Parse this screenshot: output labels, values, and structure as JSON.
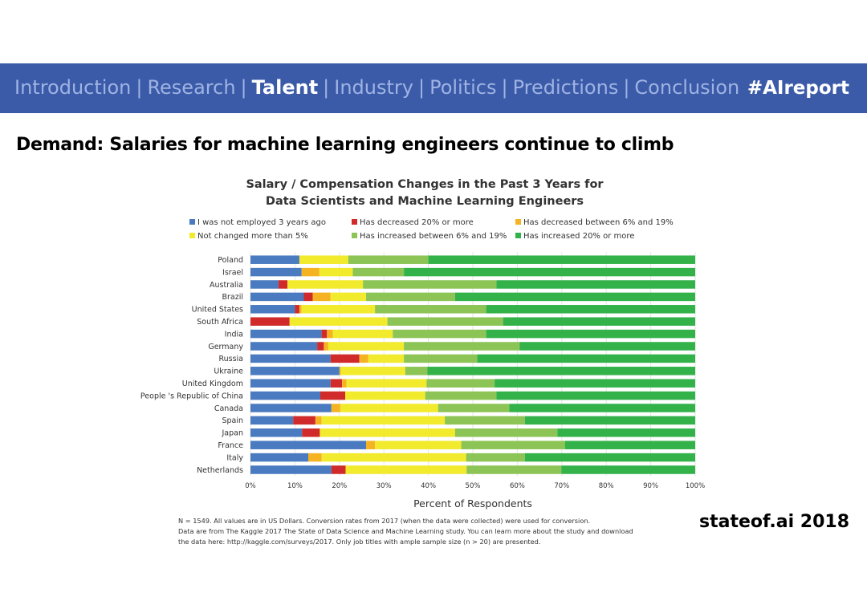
{
  "nav": {
    "items": [
      {
        "label": "Introduction",
        "active": false
      },
      {
        "label": "Research",
        "active": false
      },
      {
        "label": "Talent",
        "active": true
      },
      {
        "label": "Industry",
        "active": false
      },
      {
        "label": "Politics",
        "active": false
      },
      {
        "label": "Predictions",
        "active": false
      },
      {
        "label": "Conclusion",
        "active": false
      }
    ],
    "separator": "|",
    "hashtag": "#AIreport"
  },
  "slide": {
    "title": "Demand: Salaries for machine learning engineers continue to climb",
    "brand": "stateof.ai 2018"
  },
  "colors": {
    "nav_bg": "#3b5ba9",
    "series": [
      "#4a7ac0",
      "#d02a2a",
      "#f5b324",
      "#f2ea2c",
      "#8cc455",
      "#33b24a"
    ]
  },
  "chart_data": {
    "type": "bar",
    "orientation": "horizontal",
    "stacked": true,
    "title": [
      "Salary / Compensation Changes in the Past 3 Years for",
      "Data Scientists and Machine Learning Engineers"
    ],
    "xlabel": "Percent of Respondents",
    "ylabel": "",
    "xlim": [
      0,
      100
    ],
    "x_ticks": [
      "0%",
      "10%",
      "20%",
      "30%",
      "40%",
      "50%",
      "60%",
      "70%",
      "80%",
      "90%",
      "100%"
    ],
    "legend_position": "top",
    "categories": [
      "Poland",
      "Israel",
      "Australia",
      "Brazil",
      "United States",
      "South Africa",
      "India",
      "Germany",
      "Russia",
      "Ukraine",
      "United Kingdom",
      "People 's Republic of China",
      "Canada",
      "Spain",
      "Japan",
      "France",
      "Italy",
      "Netherlands"
    ],
    "series": [
      {
        "name": "I was not employed 3 years ago",
        "values": [
          11,
          11.5,
          6.3,
          12,
          10,
          0,
          16,
          15,
          18,
          20,
          18,
          15.7,
          18.2,
          9.6,
          11.6,
          26,
          13,
          18.2
        ]
      },
      {
        "name": "Has decreased 20% or more",
        "values": [
          0,
          0,
          2,
          2,
          1,
          8.8,
          1.2,
          1.5,
          6.5,
          0,
          2.6,
          5.6,
          0,
          5,
          4,
          0,
          0,
          3.2
        ]
      },
      {
        "name": "Has decreased between 6% and 19%",
        "values": [
          0,
          4,
          0,
          4,
          0.5,
          0,
          1.3,
          1,
          2,
          0.3,
          1,
          0,
          2,
          1.4,
          0,
          2,
          3,
          0
        ]
      },
      {
        "name": "Not changed more than 5%",
        "values": [
          11,
          7.5,
          17,
          8,
          16.5,
          22,
          13.5,
          17,
          8,
          14.5,
          18,
          18,
          22,
          27.7,
          30.4,
          19.4,
          32.5,
          27.2
        ]
      },
      {
        "name": "Has increased between 6% and 19%",
        "values": [
          18,
          11.5,
          30,
          20,
          25,
          26,
          21,
          26,
          16.5,
          5,
          15.3,
          16,
          16,
          18,
          23,
          23.3,
          13.2,
          21.3
        ]
      },
      {
        "name": "Has increased 20% or more",
        "values": [
          60,
          65.5,
          44.7,
          54,
          47,
          43.2,
          47,
          39.5,
          49,
          60.2,
          45.1,
          44.7,
          41.8,
          38.3,
          31,
          29.3,
          38.3,
          30.1
        ]
      }
    ],
    "footnotes": [
      "N = 1549. All values are in US Dollars. Conversion rates from 2017 (when the data were collected) were used for conversion.",
      "Data are from The Kaggle 2017 The State of Data Science and Machine Learning study. You can learn more about the study and download",
      "the data here: http://kaggle.com/surveys/2017. Only job titles with ample sample size (n > 20) are presented."
    ]
  }
}
